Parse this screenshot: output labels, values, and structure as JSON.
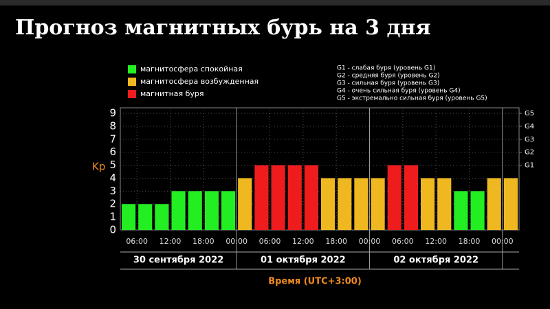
{
  "chart_data": {
    "type": "bar",
    "title": "Прогноз магнитных бурь на 3 дня",
    "legend": [
      {
        "label": "магнитосфера спокойная",
        "color": "#22ee22"
      },
      {
        "label": "магнитосфера возбужденная",
        "color": "#f0b820"
      },
      {
        "label": "магнитная буря",
        "color": "#ee1c1c"
      }
    ],
    "storm_scale": [
      "G1 - слабая буря (уровень G1)",
      "G2 - средняя буря (уровень G2)",
      "G3 - сильная буря (уровень G3)",
      "G4 - очень сильная буря (уровень G4)",
      "G5 - экстремально сильная буря (уровень G5)"
    ],
    "x": [
      3,
      6,
      9,
      12,
      15,
      18,
      21,
      24,
      27,
      30,
      33,
      36,
      39,
      42,
      45,
      48,
      51,
      54,
      57,
      60,
      63,
      66,
      69,
      72
    ],
    "values": [
      2,
      2,
      2,
      3,
      3,
      3,
      3,
      4,
      5,
      5,
      5,
      5,
      4,
      4,
      4,
      4,
      5,
      5,
      4,
      4,
      3,
      3,
      4,
      4
    ],
    "colors": [
      "#22ee22",
      "#22ee22",
      "#22ee22",
      "#22ee22",
      "#22ee22",
      "#22ee22",
      "#22ee22",
      "#f0b820",
      "#ee1c1c",
      "#ee1c1c",
      "#ee1c1c",
      "#ee1c1c",
      "#f0b820",
      "#f0b820",
      "#f0b820",
      "#f0b820",
      "#ee1c1c",
      "#ee1c1c",
      "#f0b820",
      "#f0b820",
      "#22ee22",
      "#22ee22",
      "#f0b820",
      "#f0b820"
    ],
    "xlim": [
      3,
      75
    ],
    "xticks": [
      {
        "value": 6,
        "label": "06:00"
      },
      {
        "value": 12,
        "label": "12:00"
      },
      {
        "value": 18,
        "label": "18:00"
      },
      {
        "value": 24,
        "label": "00:00"
      },
      {
        "value": 30,
        "label": "06:00"
      },
      {
        "value": 36,
        "label": "12:00"
      },
      {
        "value": 42,
        "label": "18:00"
      },
      {
        "value": 48,
        "label": "00:00"
      },
      {
        "value": 54,
        "label": "06:00"
      },
      {
        "value": 60,
        "label": "12:00"
      },
      {
        "value": 66,
        "label": "18:00"
      },
      {
        "value": 72,
        "label": "00:00"
      }
    ],
    "days": [
      "30 сентября 2022",
      "01 октября 2022",
      "02 октября 2022"
    ],
    "ylim": [
      0,
      9
    ],
    "yticks": [
      0,
      1,
      2,
      3,
      4,
      5,
      6,
      7,
      8,
      9
    ],
    "y2lim": [
      0,
      9
    ],
    "y2ticks": [
      {
        "value": 5,
        "label": "G1"
      },
      {
        "value": 6,
        "label": "G2"
      },
      {
        "value": 7,
        "label": "G3"
      },
      {
        "value": 8,
        "label": "G4"
      },
      {
        "value": 9,
        "label": "G5"
      }
    ],
    "ylabel": "Kp",
    "xlabel": "Время (UTC+3:00)",
    "grid": true
  }
}
